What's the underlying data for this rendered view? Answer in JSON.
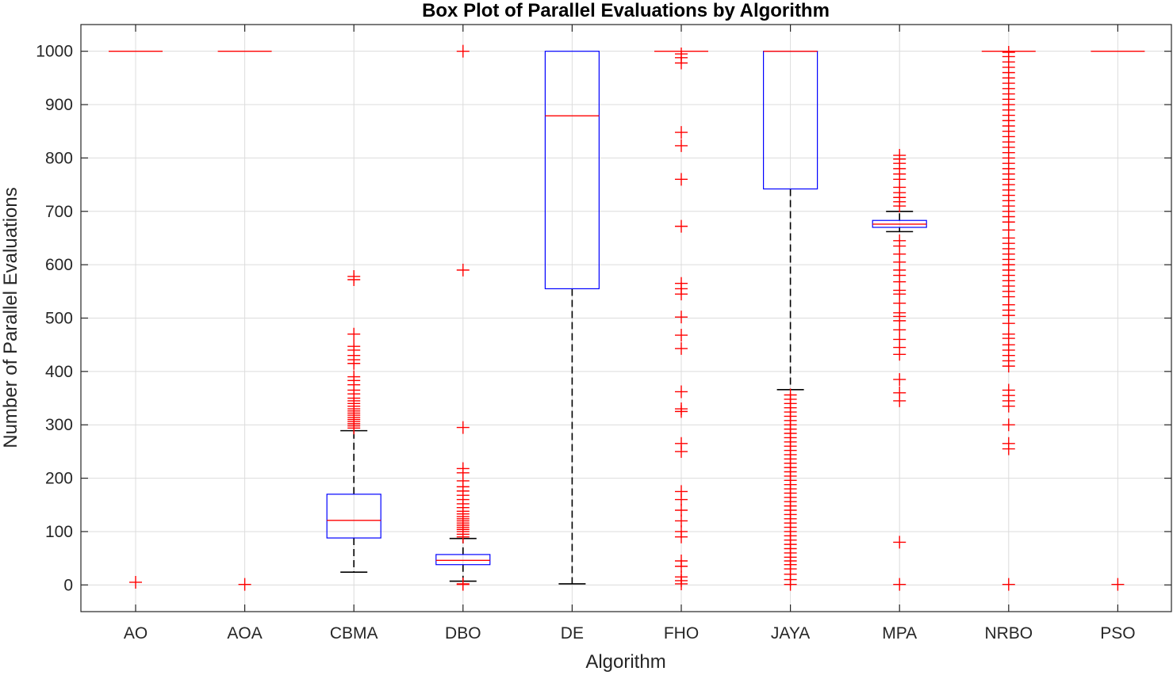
{
  "chart_data": {
    "type": "box",
    "title": "Box Plot of Parallel Evaluations by Algorithm",
    "xlabel": "Algorithm",
    "ylabel": "Number of Parallel Evaluations",
    "ylim": [
      -50,
      1050
    ],
    "yticks": [
      0,
      100,
      200,
      300,
      400,
      500,
      600,
      700,
      800,
      900,
      1000
    ],
    "ytick_labels": [
      "0",
      "100",
      "200",
      "300",
      "400",
      "500",
      "600",
      "700",
      "800",
      "900",
      "1000"
    ],
    "grid": true,
    "categories": [
      "AO",
      "AOA",
      "CBMA",
      "DBO",
      "DE",
      "FHO",
      "JAYA",
      "MPA",
      "NRBO",
      "PSO"
    ],
    "colors": {
      "box": "#0000ff",
      "median": "#ff0000",
      "outlier": "#ff0000",
      "whisker": "#000000"
    },
    "boxes": [
      {
        "name": "AO",
        "q1": 1000,
        "median": 1000,
        "q3": 1000,
        "whisker_low": 1000,
        "whisker_high": 1000,
        "outliers": [
          5
        ]
      },
      {
        "name": "AOA",
        "q1": 1000,
        "median": 1000,
        "q3": 1000,
        "whisker_low": 1000,
        "whisker_high": 1000,
        "outliers": [
          1
        ]
      },
      {
        "name": "CBMA",
        "q1": 88,
        "median": 121,
        "q3": 170,
        "whisker_low": 24,
        "whisker_high": 289,
        "outliers": [
          294,
          298,
          302,
          306,
          310,
          314,
          318,
          322,
          326,
          330,
          335,
          340,
          345,
          350,
          358,
          365,
          375,
          383,
          390,
          415,
          422,
          430,
          440,
          447,
          470,
          572,
          578
        ]
      },
      {
        "name": "DBO",
        "q1": 38,
        "median": 46,
        "q3": 57,
        "whisker_low": 7,
        "whisker_high": 87,
        "outliers": [
          1,
          2,
          90,
          95,
          100,
          104,
          108,
          112,
          116,
          120,
          124,
          128,
          133,
          138,
          145,
          152,
          160,
          168,
          176,
          184,
          195,
          210,
          218,
          295,
          590,
          1000
        ]
      },
      {
        "name": "DE",
        "q1": 555,
        "median": 879,
        "q3": 1000,
        "whisker_low": 2,
        "whisker_high": 1000,
        "outliers": []
      },
      {
        "name": "FHO",
        "q1": 1000,
        "median": 1000,
        "q3": 1000,
        "whisker_low": 1000,
        "whisker_high": 1000,
        "outliers": [
          2,
          8,
          15,
          35,
          45,
          90,
          100,
          120,
          140,
          160,
          175,
          250,
          265,
          325,
          330,
          362,
          443,
          468,
          502,
          545,
          555,
          565,
          672,
          760,
          823,
          848,
          978,
          988,
          995
        ]
      },
      {
        "name": "JAYA",
        "q1": 742,
        "median": 1000,
        "q3": 1000,
        "whisker_low": 366,
        "whisker_high": 1000,
        "outliers": [
          1,
          10,
          20,
          30,
          38,
          45,
          52,
          60,
          68,
          76,
          84,
          92,
          100,
          108,
          116,
          124,
          132,
          140,
          148,
          156,
          164,
          172,
          180,
          188,
          196,
          204,
          212,
          220,
          228,
          236,
          244,
          252,
          260,
          268,
          276,
          284,
          292,
          300,
          308,
          316,
          324,
          332,
          340,
          348,
          356
        ]
      },
      {
        "name": "MPA",
        "q1": 670,
        "median": 676,
        "q3": 683,
        "whisker_low": 662,
        "whisker_high": 700,
        "outliers": [
          1,
          80,
          345,
          360,
          385,
          432,
          445,
          460,
          478,
          495,
          503,
          510,
          528,
          545,
          552,
          568,
          580,
          590,
          605,
          620,
          635,
          645,
          710,
          718,
          726,
          735,
          745,
          760,
          770,
          780,
          790,
          798,
          805
        ]
      },
      {
        "name": "NRBO",
        "q1": 1000,
        "median": 1000,
        "q3": 1000,
        "whisker_low": 1000,
        "whisker_high": 1000,
        "outliers": [
          1,
          255,
          265,
          300,
          335,
          345,
          355,
          365,
          410,
          420,
          430,
          440,
          450,
          462,
          470,
          490,
          505,
          515,
          525,
          540,
          550,
          560,
          570,
          580,
          590,
          600,
          610,
          620,
          630,
          640,
          650,
          665,
          680,
          690,
          700,
          710,
          720,
          730,
          740,
          750,
          760,
          770,
          780,
          790,
          800,
          810,
          820,
          830,
          840,
          850,
          860,
          870,
          880,
          890,
          900,
          910,
          920,
          930,
          940,
          950,
          960,
          970,
          980,
          990,
          998
        ]
      },
      {
        "name": "PSO",
        "q1": 1000,
        "median": 1000,
        "q3": 1000,
        "whisker_low": 1000,
        "whisker_high": 1000,
        "outliers": [
          1
        ]
      }
    ]
  }
}
